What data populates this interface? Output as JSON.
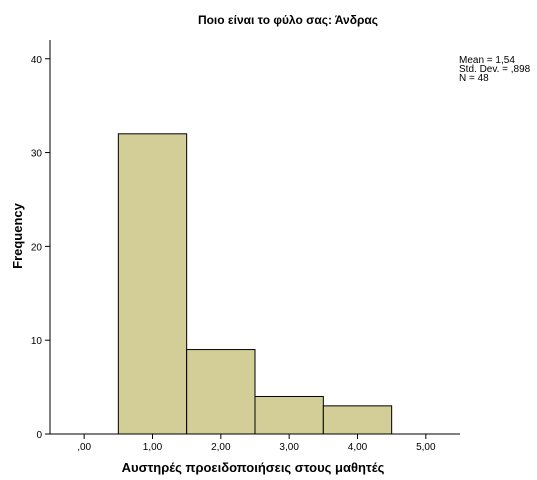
{
  "chart_data": {
    "type": "bar",
    "title": "Ποιο είναι το φύλο σας: Άνδρας",
    "xlabel": "Αυστηρές προειδοποιήσεις στους μαθητές",
    "ylabel": "Frequency",
    "xlim": [
      -0.5,
      5.5
    ],
    "ylim": [
      0,
      42
    ],
    "x_ticks": [
      0,
      1,
      2,
      3,
      4,
      5
    ],
    "x_tick_labels": [
      ",00",
      "1,00",
      "2,00",
      "3,00",
      "4,00",
      "5,00"
    ],
    "y_ticks": [
      0,
      10,
      20,
      30,
      40
    ],
    "y_tick_labels": [
      "0",
      "10",
      "20",
      "30",
      "40"
    ],
    "bins": [
      {
        "from": 0.5,
        "to": 1.5,
        "value": 32
      },
      {
        "from": 1.5,
        "to": 2.5,
        "value": 9
      },
      {
        "from": 2.5,
        "to": 3.5,
        "value": 4
      },
      {
        "from": 3.5,
        "to": 4.5,
        "value": 3
      }
    ],
    "grid": false,
    "bar_color": "#d3ce97",
    "stats": [
      "Mean = 1,54",
      "Std. Dev. = ,898",
      "N = 48"
    ]
  }
}
